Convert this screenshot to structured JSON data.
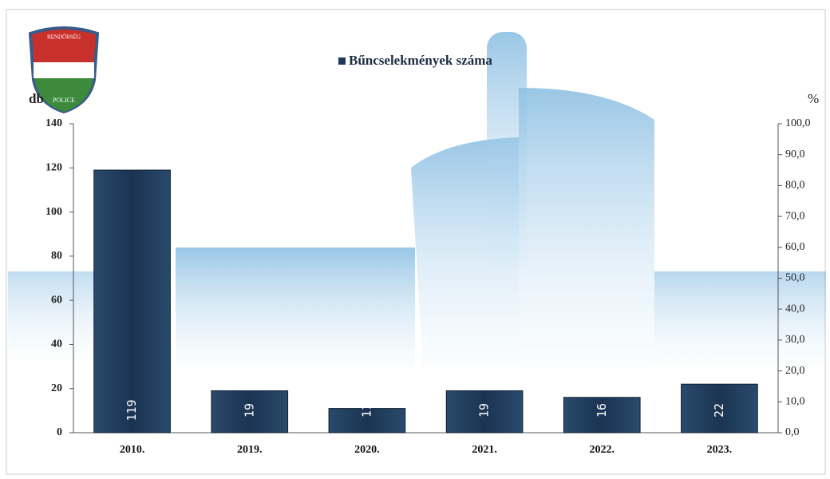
{
  "chart_data": {
    "type": "bar",
    "logo": {
      "top": "RENDŐRSÉG",
      "bottom": "POLICE"
    },
    "legend": "Bűncselekmények száma",
    "ylabel": "db",
    "y2label": "%",
    "categories": [
      "2010.",
      "2019.",
      "2020.",
      "2021.",
      "2022.",
      "2023."
    ],
    "series": [
      {
        "name": "Bűncselekmények száma",
        "color": "#1f3a58",
        "values": [
          119,
          19,
          11,
          19,
          16,
          22
        ]
      }
    ],
    "ylim": [
      0,
      140
    ],
    "yticks": [
      0,
      20,
      40,
      60,
      80,
      100,
      120,
      140
    ],
    "y2lim": [
      0,
      100
    ],
    "y2ticks": [
      {
        "value": 0,
        "label": "0,0"
      },
      {
        "value": 10,
        "label": "10,0"
      },
      {
        "value": 20,
        "label": "20,0"
      },
      {
        "value": 30,
        "label": "30,0"
      },
      {
        "value": 40,
        "label": "40,0"
      },
      {
        "value": 50,
        "label": "50,0"
      },
      {
        "value": 60,
        "label": "60,0"
      },
      {
        "value": 70,
        "label": "70,0"
      },
      {
        "value": 80,
        "label": "80,0"
      },
      {
        "value": 90,
        "label": "90,0"
      },
      {
        "value": 100,
        "label": "100,0"
      }
    ]
  }
}
